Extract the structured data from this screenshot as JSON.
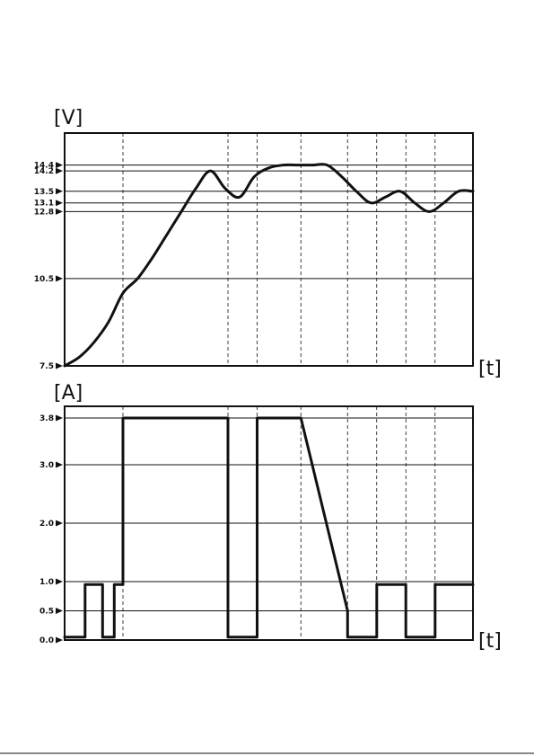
{
  "chart_data": [
    {
      "type": "line",
      "ylabel": "[V]",
      "xlabel": "[t]",
      "y_ticks": [
        "14.4",
        "14.2",
        "13.5",
        "13.1",
        "12.8",
        "10.5",
        "7.5"
      ],
      "y_tick_values": [
        14.4,
        14.2,
        13.5,
        13.1,
        12.8,
        10.5,
        7.5
      ],
      "ylim": [
        7.5,
        15.5
      ],
      "grid": true,
      "x": [
        0,
        0.5,
        1,
        1.5,
        2,
        2.5,
        3,
        3.5,
        4,
        4.5,
        5,
        5.5,
        6,
        6.5,
        7,
        7.5,
        8,
        8.5,
        9,
        9.5,
        10,
        10.5,
        11,
        11.5,
        12,
        12.5,
        13,
        13.5,
        14
      ],
      "values": [
        7.5,
        7.8,
        8.3,
        9.0,
        10.0,
        10.5,
        11.2,
        12.0,
        12.8,
        13.6,
        14.2,
        13.6,
        13.3,
        14.0,
        14.3,
        14.4,
        14.4,
        14.4,
        14.4,
        14.0,
        13.5,
        13.1,
        13.3,
        13.5,
        13.1,
        12.8,
        13.1,
        13.5,
        13.5
      ]
    },
    {
      "type": "line",
      "ylabel": "[A]",
      "xlabel": "[t]",
      "y_ticks": [
        "3.8",
        "3.0",
        "2.0",
        "1.0",
        "0.5",
        "0.0"
      ],
      "y_tick_values": [
        3.8,
        3.0,
        2.0,
        1.0,
        0.5,
        0.0
      ],
      "ylim": [
        0.0,
        4.0
      ],
      "grid": true,
      "x": [
        0,
        0.3,
        0.7,
        0.7,
        1.3,
        1.3,
        1.7,
        1.7,
        2.0,
        2.0,
        5.6,
        5.6,
        6.6,
        6.6,
        8.1,
        9.7,
        9.7,
        10.7,
        10.7,
        11.7,
        11.7,
        12.7,
        12.7,
        14.0
      ],
      "values": [
        0.05,
        0.05,
        0.05,
        0.95,
        0.95,
        0.05,
        0.05,
        0.95,
        0.95,
        3.8,
        3.8,
        0.05,
        0.05,
        3.8,
        3.8,
        0.5,
        0.05,
        0.05,
        0.95,
        0.95,
        0.05,
        0.05,
        0.95,
        0.95
      ]
    }
  ]
}
